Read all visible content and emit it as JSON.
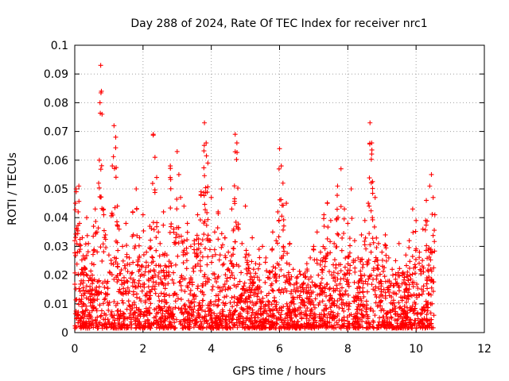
{
  "chart_data": {
    "type": "scatter",
    "title": "Day 288 of 2024, Rate Of TEC Index for receiver nrc1",
    "xlabel": "GPS time / hours",
    "ylabel": "ROTI / TECUs",
    "xlim": [
      0,
      12
    ],
    "ylim": [
      0,
      0.1
    ],
    "x_ticks": [
      0,
      2,
      4,
      6,
      8,
      10,
      12
    ],
    "y_ticks": [
      0,
      0.01,
      0.02,
      0.03,
      0.04,
      0.05,
      0.06,
      0.07,
      0.08,
      0.09,
      0.1
    ],
    "x_tick_labels": [
      "0",
      "2",
      "4",
      "6",
      "8",
      "10",
      "12"
    ],
    "y_tick_labels": [
      "0",
      "0.01",
      "0.02",
      "0.03",
      "0.04",
      "0.05",
      "0.06",
      "0.07",
      "0.08",
      "0.09",
      "0.1"
    ],
    "grid": true,
    "marker": "plus",
    "color": "#ff0000",
    "series": [
      {
        "x": [
          0.0,
          0.02,
          0.04,
          0.06,
          0.08,
          0.1,
          0.12,
          0.14,
          0.16,
          0.2,
          0.22,
          0.25,
          0.3,
          0.35,
          0.4,
          0.45,
          0.5,
          0.55,
          0.6,
          0.65,
          0.7,
          0.72,
          0.74,
          0.76,
          0.78,
          0.8,
          0.85,
          0.9,
          1.0,
          1.1,
          1.15,
          1.2,
          1.25,
          1.3,
          1.4,
          1.5,
          1.6,
          1.7,
          1.8,
          1.9,
          2.0,
          2.1,
          2.2,
          2.3,
          2.35,
          2.4,
          2.45,
          2.5,
          2.6,
          2.7,
          2.8,
          2.9,
          3.0,
          3.05,
          3.1,
          3.2,
          3.3,
          3.4,
          3.5,
          3.6,
          3.7,
          3.8,
          3.85,
          3.9,
          4.0,
          4.1,
          4.2,
          4.3,
          4.4,
          4.5,
          4.6,
          4.7,
          4.75,
          4.8,
          4.9,
          5.0,
          5.1,
          5.2,
          5.3,
          5.4,
          5.5,
          5.6,
          5.7,
          5.8,
          5.9,
          5.95,
          6.0,
          6.05,
          6.1,
          6.2,
          6.3,
          6.4,
          6.5,
          6.6,
          6.7,
          6.8,
          6.9,
          7.0,
          7.1,
          7.2,
          7.3,
          7.4,
          7.5,
          7.6,
          7.7,
          7.8,
          7.9,
          8.0,
          8.1,
          8.2,
          8.3,
          8.4,
          8.5,
          8.6,
          8.65,
          8.7,
          8.8,
          8.9,
          9.0,
          9.1,
          9.2,
          9.3,
          9.4,
          9.5,
          9.6,
          9.7,
          9.8,
          9.9,
          10.0,
          10.1,
          10.2,
          10.3,
          10.4,
          10.45,
          10.5,
          10.55
        ],
        "y": [
          0.032,
          0.045,
          0.05,
          0.036,
          0.028,
          0.042,
          0.051,
          0.038,
          0.029,
          0.022,
          0.033,
          0.018,
          0.026,
          0.04,
          0.031,
          0.019,
          0.024,
          0.037,
          0.043,
          0.035,
          0.052,
          0.06,
          0.08,
          0.093,
          0.084,
          0.076,
          0.041,
          0.034,
          0.027,
          0.058,
          0.072,
          0.068,
          0.044,
          0.036,
          0.03,
          0.038,
          0.026,
          0.042,
          0.05,
          0.033,
          0.041,
          0.028,
          0.037,
          0.069,
          0.061,
          0.054,
          0.035,
          0.031,
          0.042,
          0.027,
          0.058,
          0.036,
          0.063,
          0.055,
          0.047,
          0.044,
          0.038,
          0.03,
          0.032,
          0.041,
          0.049,
          0.073,
          0.066,
          0.059,
          0.047,
          0.035,
          0.042,
          0.05,
          0.033,
          0.028,
          0.043,
          0.069,
          0.066,
          0.036,
          0.031,
          0.044,
          0.027,
          0.033,
          0.024,
          0.029,
          0.03,
          0.026,
          0.021,
          0.035,
          0.032,
          0.042,
          0.064,
          0.058,
          0.052,
          0.045,
          0.031,
          0.022,
          0.019,
          0.016,
          0.02,
          0.024,
          0.026,
          0.03,
          0.035,
          0.028,
          0.041,
          0.045,
          0.039,
          0.031,
          0.051,
          0.057,
          0.043,
          0.038,
          0.05,
          0.032,
          0.026,
          0.034,
          0.039,
          0.045,
          0.073,
          0.066,
          0.047,
          0.031,
          0.028,
          0.034,
          0.026,
          0.022,
          0.025,
          0.031,
          0.02,
          0.027,
          0.032,
          0.043,
          0.039,
          0.028,
          0.036,
          0.046,
          0.051,
          0.055,
          0.047,
          0.041
        ]
      }
    ]
  }
}
